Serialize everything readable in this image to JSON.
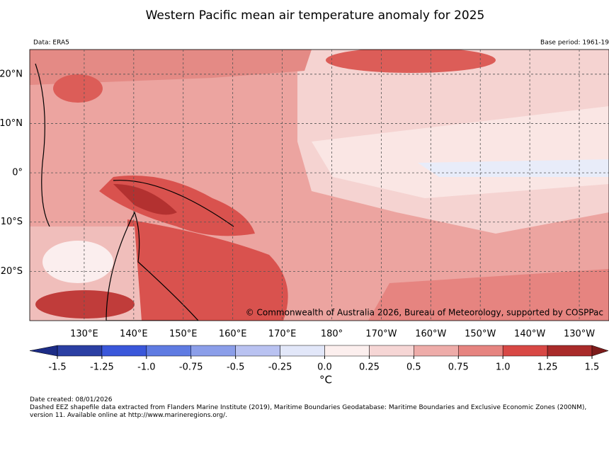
{
  "title": "Western Pacific mean air temperature anomaly for 2025",
  "data_source": "Data: ERA5",
  "base_period": "Base period: 1961-19",
  "map": {
    "xlim": [
      119,
      236
    ],
    "ylim": [
      -30,
      25
    ],
    "grid": true,
    "lat_ticks": [
      {
        "value": 20,
        "label": "20°N"
      },
      {
        "value": 10,
        "label": "10°N"
      },
      {
        "value": 0,
        "label": "0°"
      },
      {
        "value": -10,
        "label": "10°S"
      },
      {
        "value": -20,
        "label": "20°S"
      }
    ],
    "lon_ticks": [
      {
        "value": 130,
        "label": "130°E"
      },
      {
        "value": 140,
        "label": "140°E"
      },
      {
        "value": 150,
        "label": "150°E"
      },
      {
        "value": 160,
        "label": "160°E"
      },
      {
        "value": 170,
        "label": "170°E"
      },
      {
        "value": 180,
        "label": "180°"
      },
      {
        "value": 190,
        "label": "170°W"
      },
      {
        "value": 200,
        "label": "160°W"
      },
      {
        "value": 210,
        "label": "150°W"
      },
      {
        "value": 220,
        "label": "140°W"
      },
      {
        "value": 230,
        "label": "130°W"
      }
    ],
    "credit": "© Commonwealth of Australia 2026, Bureau of Meteorology, supported by COSPPac"
  },
  "colorbar": {
    "range": [
      -1.5,
      1.5
    ],
    "ticks": [
      -1.5,
      -1.25,
      {
        "value": -1,
        "label": "-1.0"
      },
      -0.75,
      -0.5,
      -0.25,
      {
        "value": 0,
        "label": "0.0"
      },
      0.25,
      0.5,
      0.75,
      {
        "value": 1,
        "label": "1.0"
      },
      1.25,
      1.5
    ],
    "colors": [
      "#2b3fa3",
      "#3a57da",
      "#5f7be2",
      "#8b9ee9",
      "#b9c2f1",
      "#e2e7f9",
      "#fcefee",
      "#f6d6d5",
      "#eeaca9",
      "#e68480",
      "#d84845",
      "#a92b2a"
    ],
    "extend_colors": [
      "#1c2c86",
      "#7d1c1b"
    ],
    "unit": "°C"
  },
  "footer": {
    "date": "Date created: 08/01/2026",
    "note": "Dashed EEZ shapefile data extracted from Flanders Marine Institute (2019), Maritime Boundaries Geodatabase: Maritime Boundaries and Exclusive Economic Zones (200NM), version 11. Available online at http://www.marineregions.org/."
  }
}
